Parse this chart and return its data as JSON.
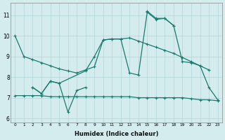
{
  "bg_color": "#d5ecee",
  "grid_color": "#b2d4d8",
  "line_color": "#1a7a6e",
  "xlabel": "Humidex (Indice chaleur)",
  "xlim": [
    -0.5,
    23.5
  ],
  "ylim": [
    5.8,
    11.6
  ],
  "yticks": [
    6,
    7,
    8,
    9,
    10,
    11
  ],
  "xticks": [
    0,
    1,
    2,
    3,
    4,
    5,
    6,
    7,
    8,
    9,
    10,
    11,
    12,
    13,
    14,
    15,
    16,
    17,
    18,
    19,
    20,
    21,
    22,
    23
  ],
  "curves": [
    {
      "x": [
        0,
        1,
        2,
        3,
        4,
        5,
        6,
        7,
        8,
        9,
        10,
        11,
        12,
        13,
        14,
        15,
        16,
        17,
        18,
        19,
        20,
        21,
        22
      ],
      "y": [
        10.0,
        9.0,
        8.85,
        8.7,
        8.55,
        8.4,
        8.3,
        8.2,
        8.35,
        8.5,
        9.8,
        9.85,
        9.85,
        9.9,
        9.75,
        9.6,
        9.45,
        9.3,
        9.15,
        8.95,
        8.75,
        8.55,
        8.35
      ]
    },
    {
      "x": [
        2,
        3,
        4,
        5,
        8,
        9,
        10,
        11,
        12,
        13,
        14,
        15,
        16,
        17,
        18,
        19,
        20,
        21,
        22,
        23
      ],
      "y": [
        7.5,
        7.2,
        7.8,
        7.7,
        8.3,
        9.0,
        9.8,
        9.85,
        9.85,
        8.2,
        8.1,
        11.15,
        10.8,
        10.85,
        10.5,
        8.75,
        8.7,
        8.55,
        7.5,
        6.9
      ]
    },
    {
      "x": [
        15,
        16,
        17,
        18
      ],
      "y": [
        11.2,
        10.85,
        10.85,
        10.5
      ]
    },
    {
      "x": [
        2,
        3,
        4,
        5,
        6,
        7,
        8
      ],
      "y": [
        7.5,
        7.2,
        7.8,
        7.7,
        6.3,
        7.35,
        7.5
      ]
    },
    {
      "x": [
        0,
        1,
        2,
        3,
        4,
        5,
        6,
        7,
        8,
        9,
        10,
        11,
        12,
        13,
        14,
        15,
        16,
        17,
        18,
        19,
        20,
        21,
        22,
        23
      ],
      "y": [
        7.1,
        7.1,
        7.1,
        7.1,
        7.05,
        7.05,
        7.05,
        7.05,
        7.05,
        7.05,
        7.05,
        7.05,
        7.05,
        7.05,
        7.0,
        7.0,
        7.0,
        7.0,
        7.0,
        7.0,
        6.95,
        6.9,
        6.9,
        6.85
      ]
    }
  ]
}
